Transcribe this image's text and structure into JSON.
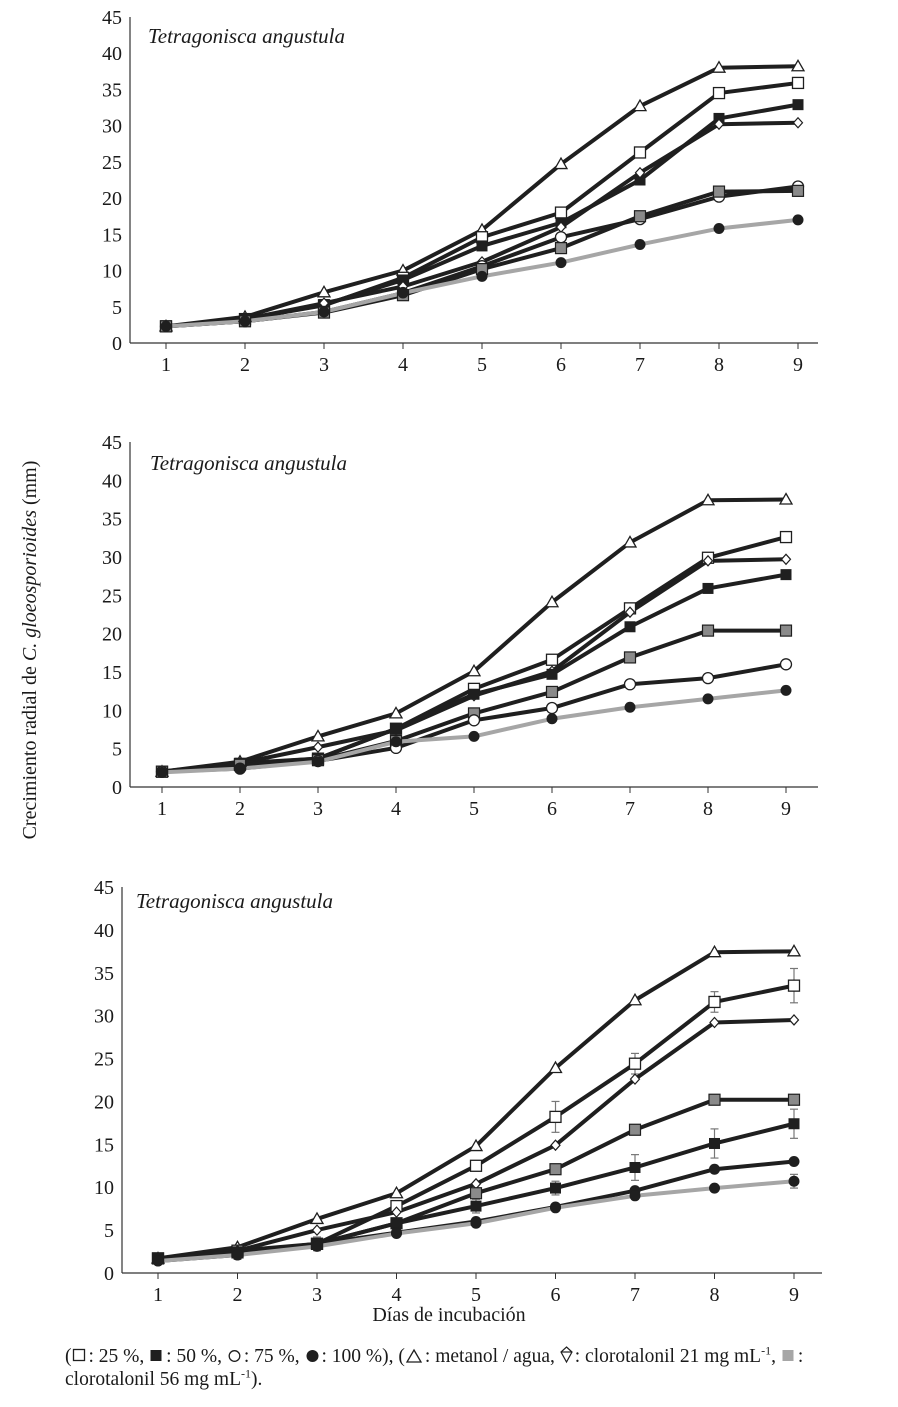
{
  "figure": {
    "y_axis_label_prefix": "Crecimiento radial de ",
    "y_axis_label_italic": "C. gloeosporioides",
    "y_axis_label_suffix": " (mm)",
    "x_axis_label": "Días de incubación"
  },
  "caption": {
    "p1": ": 25 %, ",
    "p2": ": 50 %, ",
    "p3": ": 75 %, ",
    "p4": ": 100 %), (",
    "p5": ": metanol / agua, ",
    "p6": ": clorotalonil 21 mg mL",
    "sup1": "-1",
    "p7": ", ",
    "p8": ": clorotalonil 56 mg mL",
    "sup2": "-1",
    "p9": ")."
  },
  "colors": {
    "black": "#1f1f1f",
    "gray": "#a6a6a6",
    "gray_fill": "#8a8a8a"
  },
  "chart_data": [
    {
      "type": "line",
      "title": "Tetragonisca angustula",
      "x": [
        1,
        2,
        3,
        4,
        5,
        6,
        7,
        8,
        9
      ],
      "ylim": [
        0,
        45
      ],
      "yticks": [
        0,
        5,
        10,
        15,
        20,
        25,
        30,
        35,
        40,
        45
      ],
      "series": [
        {
          "marker": "triangle-open",
          "line": "black",
          "values": [
            2.3,
            3.6,
            7.0,
            10.0,
            15.6,
            24.7,
            32.7,
            38.0,
            38.2
          ]
        },
        {
          "marker": "square-open",
          "line": "black",
          "values": [
            2.3,
            3.3,
            5.2,
            9.0,
            14.6,
            18.0,
            26.3,
            34.5,
            35.9
          ]
        },
        {
          "marker": "square-filled",
          "line": "black",
          "values": [
            2.3,
            3.3,
            5.3,
            8.7,
            13.4,
            16.6,
            22.5,
            31.0,
            32.9
          ]
        },
        {
          "marker": "diamond-open",
          "line": "black",
          "values": [
            2.3,
            3.3,
            5.5,
            7.8,
            11.2,
            16.0,
            23.5,
            30.2,
            30.4
          ]
        },
        {
          "marker": "circle-open",
          "line": "black",
          "values": [
            2.3,
            3.0,
            4.3,
            6.9,
            10.6,
            14.6,
            17.1,
            20.2,
            21.6
          ]
        },
        {
          "marker": "square-gray",
          "line": "black",
          "values": [
            2.3,
            3.0,
            4.2,
            6.6,
            10.2,
            13.1,
            17.5,
            20.9,
            21.0
          ]
        },
        {
          "marker": "circle-filled",
          "line": "gray",
          "values": [
            2.3,
            3.0,
            4.3,
            6.9,
            9.2,
            11.1,
            13.6,
            15.8,
            17.0
          ]
        }
      ]
    },
    {
      "type": "line",
      "title": "Tetragonisca angustula",
      "x": [
        1,
        2,
        3,
        4,
        5,
        6,
        7,
        8,
        9
      ],
      "ylim": [
        0,
        45
      ],
      "yticks": [
        0,
        5,
        10,
        15,
        20,
        25,
        30,
        35,
        40,
        45
      ],
      "series": [
        {
          "marker": "triangle-open",
          "line": "black",
          "values": [
            2.0,
            3.3,
            6.6,
            9.6,
            15.1,
            24.1,
            31.9,
            37.4,
            37.5
          ]
        },
        {
          "marker": "square-open",
          "line": "black",
          "values": [
            2.0,
            3.0,
            3.7,
            7.6,
            12.8,
            16.6,
            23.3,
            29.9,
            32.6
          ]
        },
        {
          "marker": "diamond-open",
          "line": "black",
          "values": [
            2.0,
            3.1,
            5.2,
            7.4,
            11.9,
            15.1,
            22.8,
            29.5,
            29.7
          ]
        },
        {
          "marker": "square-filled",
          "line": "black",
          "values": [
            2.0,
            3.1,
            3.7,
            7.6,
            12.1,
            14.7,
            20.9,
            25.9,
            27.7
          ]
        },
        {
          "marker": "square-gray",
          "line": "black",
          "values": [
            2.0,
            2.9,
            3.5,
            6.0,
            9.6,
            12.4,
            16.9,
            20.4,
            20.4
          ]
        },
        {
          "marker": "circle-open",
          "line": "black",
          "values": [
            2.0,
            2.4,
            3.4,
            5.1,
            8.7,
            10.3,
            13.4,
            14.2,
            16.0
          ]
        },
        {
          "marker": "circle-filled",
          "line": "gray",
          "values": [
            1.9,
            2.4,
            3.3,
            5.9,
            6.6,
            8.9,
            10.4,
            11.5,
            12.6
          ]
        }
      ]
    },
    {
      "type": "line",
      "title": "Tetragonisca angustula",
      "x": [
        1,
        2,
        3,
        4,
        5,
        6,
        7,
        8,
        9
      ],
      "ylim": [
        0,
        45
      ],
      "yticks": [
        0,
        5,
        10,
        15,
        20,
        25,
        30,
        35,
        40,
        45
      ],
      "series": [
        {
          "marker": "triangle-open",
          "line": "black",
          "values": [
            1.7,
            3.0,
            6.3,
            9.3,
            14.8,
            23.9,
            31.8,
            37.4,
            37.5
          ]
        },
        {
          "marker": "square-open",
          "line": "black",
          "values": [
            1.7,
            2.6,
            3.4,
            7.8,
            12.5,
            18.2,
            24.4,
            31.6,
            33.5
          ],
          "error": [
            0,
            0,
            0,
            0,
            0,
            1.8,
            1.2,
            1.2,
            2.0
          ]
        },
        {
          "marker": "diamond-open",
          "line": "black",
          "values": [
            1.7,
            2.6,
            5.0,
            7.1,
            10.4,
            14.9,
            22.6,
            29.2,
            29.5
          ]
        },
        {
          "marker": "square-gray",
          "line": "black",
          "values": [
            1.7,
            2.4,
            3.4,
            5.8,
            9.3,
            12.1,
            16.7,
            20.2,
            20.2
          ]
        },
        {
          "marker": "square-filled",
          "line": "black",
          "values": [
            1.7,
            2.4,
            3.4,
            5.8,
            7.8,
            9.9,
            12.3,
            15.1,
            17.4
          ],
          "error": [
            0.6,
            0.8,
            0.8,
            0,
            0.8,
            0.8,
            1.5,
            1.7,
            1.7
          ]
        },
        {
          "marker": "circle-filled",
          "line": "black",
          "values": [
            1.4,
            2.1,
            3.4,
            4.7,
            6.0,
            7.7,
            9.6,
            12.1,
            13.0
          ]
        },
        {
          "marker": "circle-filled",
          "line": "gray",
          "values": [
            1.4,
            2.1,
            3.1,
            4.6,
            5.8,
            7.6,
            9.0,
            9.9,
            10.7
          ],
          "error": [
            0,
            0,
            0,
            0,
            0,
            0,
            0,
            0,
            0.8
          ]
        }
      ]
    }
  ]
}
